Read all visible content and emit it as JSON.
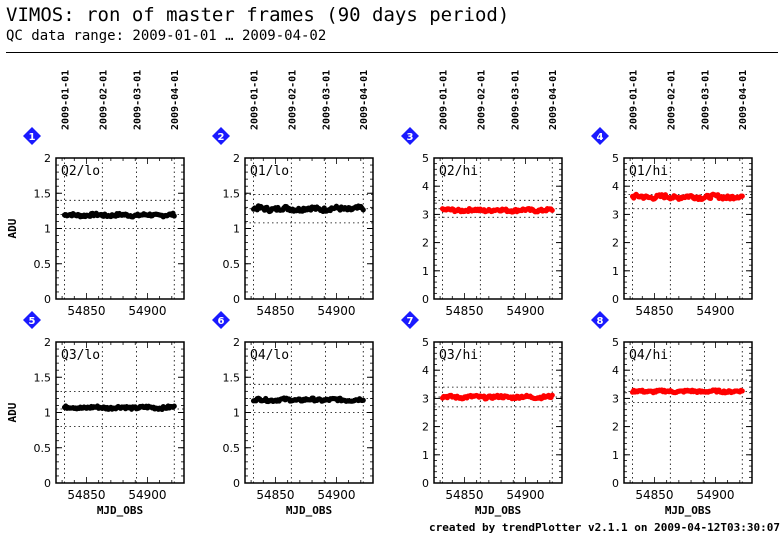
{
  "page": {
    "title": "VIMOS: ron of master frames (90 days period)",
    "subtitle": "QC data range: 2009-01-01 … 2009-04-02",
    "footer": "created by trendPlotter v2.1.1 on 2009-04-12T03:30:07"
  },
  "colors": {
    "lo": "#000000",
    "hi": "#ff0000",
    "badge": "#1a1aff"
  },
  "date_ticks": {
    "labels": [
      "2009-01-01",
      "2009-02-01",
      "2009-03-01",
      "2009-04-01"
    ],
    "mjd": [
      54832,
      54863,
      54891,
      54922
    ]
  },
  "chart_data": [
    {
      "type": "scatter",
      "badge": "1",
      "label": "Q2/lo",
      "ylabel": "ADU",
      "xlabel": "",
      "xlim": [
        54825,
        54930
      ],
      "ylim": [
        0,
        2
      ],
      "yticks": [
        "0",
        "0.5",
        "1",
        "1.5",
        "2"
      ],
      "xticks": [
        "54850",
        "54900"
      ],
      "ref_lines": [
        1.0,
        1.2,
        1.4
      ],
      "color": "#000000",
      "series": [
        {
          "x_start": 54832,
          "x_end": 54922,
          "mean": 1.19,
          "scatter": 0.02
        }
      ]
    },
    {
      "type": "scatter",
      "badge": "2",
      "label": "Q1/lo",
      "ylabel": "",
      "xlabel": "",
      "xlim": [
        54825,
        54930
      ],
      "ylim": [
        0,
        2
      ],
      "yticks": [
        "0",
        "0.5",
        "1",
        "1.5",
        "2"
      ],
      "xticks": [
        "54850",
        "54900"
      ],
      "ref_lines": [
        1.08,
        1.28,
        1.48
      ],
      "color": "#000000",
      "series": [
        {
          "x_start": 54832,
          "x_end": 54922,
          "mean": 1.28,
          "scatter": 0.03
        }
      ]
    },
    {
      "type": "scatter",
      "badge": "3",
      "label": "Q2/hi",
      "ylabel": "",
      "xlabel": "",
      "xlim": [
        54825,
        54930
      ],
      "ylim": [
        0,
        5
      ],
      "yticks": [
        "0",
        "1",
        "2",
        "3",
        "4",
        "5"
      ],
      "xticks": [
        "54850",
        "54900"
      ],
      "ref_lines": [
        2.9,
        3.2,
        3.5
      ],
      "color": "#ff0000",
      "series": [
        {
          "x_start": 54832,
          "x_end": 54922,
          "mean": 3.15,
          "scatter": 0.05
        }
      ]
    },
    {
      "type": "scatter",
      "badge": "4",
      "label": "Q1/hi",
      "ylabel": "",
      "xlabel": "",
      "xlim": [
        54825,
        54930
      ],
      "ylim": [
        0,
        5
      ],
      "yticks": [
        "0",
        "1",
        "2",
        "3",
        "4",
        "5"
      ],
      "xticks": [
        "54850",
        "54900"
      ],
      "ref_lines": [
        3.2,
        3.7,
        4.2
      ],
      "color": "#ff0000",
      "series": [
        {
          "x_start": 54832,
          "x_end": 54922,
          "mean": 3.62,
          "scatter": 0.07
        }
      ]
    },
    {
      "type": "scatter",
      "badge": "5",
      "label": "Q3/lo",
      "ylabel": "ADU",
      "xlabel": "MJD_OBS",
      "xlim": [
        54825,
        54930
      ],
      "ylim": [
        0,
        2
      ],
      "yticks": [
        "0",
        "0.5",
        "1",
        "1.5",
        "2"
      ],
      "xticks": [
        "54850",
        "54900"
      ],
      "ref_lines": [
        0.8,
        1.05,
        1.3
      ],
      "color": "#000000",
      "series": [
        {
          "x_start": 54832,
          "x_end": 54922,
          "mean": 1.07,
          "scatter": 0.02
        }
      ]
    },
    {
      "type": "scatter",
      "badge": "6",
      "label": "Q4/lo",
      "ylabel": "",
      "xlabel": "MJD_OBS",
      "xlim": [
        54825,
        54930
      ],
      "ylim": [
        0,
        2
      ],
      "yticks": [
        "0",
        "0.5",
        "1",
        "1.5",
        "2"
      ],
      "xticks": [
        "54850",
        "54900"
      ],
      "ref_lines": [
        1.0,
        1.2,
        1.4
      ],
      "color": "#000000",
      "series": [
        {
          "x_start": 54832,
          "x_end": 54922,
          "mean": 1.18,
          "scatter": 0.02
        }
      ]
    },
    {
      "type": "scatter",
      "badge": "7",
      "label": "Q3/hi",
      "ylabel": "",
      "xlabel": "MJD_OBS",
      "xlim": [
        54825,
        54930
      ],
      "ylim": [
        0,
        5
      ],
      "yticks": [
        "0",
        "1",
        "2",
        "3",
        "4",
        "5"
      ],
      "xticks": [
        "54850",
        "54900"
      ],
      "ref_lines": [
        2.7,
        3.05,
        3.4
      ],
      "color": "#ff0000",
      "series": [
        {
          "x_start": 54832,
          "x_end": 54922,
          "mean": 3.05,
          "scatter": 0.05
        }
      ]
    },
    {
      "type": "scatter",
      "badge": "8",
      "label": "Q4/hi",
      "ylabel": "",
      "xlabel": "MJD_OBS",
      "xlim": [
        54825,
        54930
      ],
      "ylim": [
        0,
        5
      ],
      "yticks": [
        "0",
        "1",
        "2",
        "3",
        "4",
        "5"
      ],
      "xticks": [
        "54850",
        "54900"
      ],
      "ref_lines": [
        2.85,
        3.25,
        3.65
      ],
      "color": "#ff0000",
      "series": [
        {
          "x_start": 54832,
          "x_end": 54922,
          "mean": 3.25,
          "scatter": 0.04
        }
      ]
    }
  ]
}
